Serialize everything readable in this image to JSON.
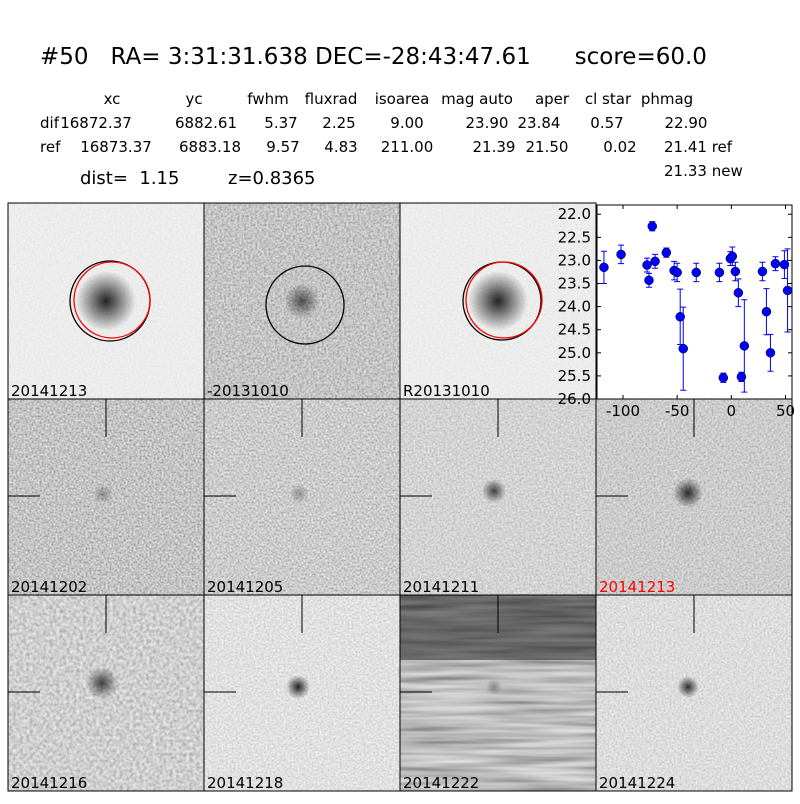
{
  "header": {
    "title": "#50   RA= 3:31:31.638 DEC=-28:43:47.61      score=60.0",
    "dist": "dist=  1.15",
    "z": "z=0.8365"
  },
  "table": {
    "columns": [
      "xc",
      "yc",
      "fwhm",
      "fluxrad",
      "isoarea",
      "mag auto",
      "aper",
      "cl star",
      "phmag"
    ],
    "rows": [
      [
        "dif",
        "16872.37",
        "6882.61",
        "5.37",
        "2.25",
        "9.00",
        "23.90",
        "23.84",
        "0.57",
        "22.90"
      ],
      [
        "ref",
        "16873.37",
        "6883.18",
        "9.57",
        "4.83",
        "211.00",
        "21.39",
        "21.50",
        "0.02",
        "21.41 ref"
      ]
    ],
    "extra": "21.33 new"
  },
  "panels": [
    {
      "label": "20141213"
    },
    {
      "label": "-20131010"
    },
    {
      "label": "R20131010"
    },
    {
      "label": "20141202"
    },
    {
      "label": "20141205"
    },
    {
      "label": "20141211"
    },
    {
      "label": "20141213",
      "color": "#ff0000"
    },
    {
      "label": "20141216"
    },
    {
      "label": "20141218"
    },
    {
      "label": "20141222"
    },
    {
      "label": "20141224"
    }
  ],
  "chart_data": {
    "type": "scatter",
    "color": "#0000ff",
    "invert_y": true,
    "x": [
      -117.6,
      -101.8,
      -77.8,
      -76,
      -73,
      -70.4,
      -60,
      -52.8,
      -50,
      -47.2,
      -44.4,
      -32.4,
      -11,
      -7.4,
      -0.9,
      0.9,
      3.7,
      6.5,
      9.3,
      12,
      28.7,
      32.4,
      36.1,
      40.7,
      49,
      51.9
    ],
    "values": [
      23.15,
      22.87,
      23.1,
      23.43,
      22.26,
      23.02,
      22.83,
      23.22,
      23.26,
      24.22,
      24.91,
      23.26,
      23.26,
      25.54,
      22.96,
      22.91,
      23.24,
      23.7,
      25.52,
      24.85,
      23.24,
      24.11,
      25.0,
      23.07,
      23.09,
      23.65
    ],
    "errors": [
      0.35,
      0.2,
      0.15,
      0.15,
      0.1,
      0.15,
      0.1,
      0.2,
      0.2,
      0.6,
      0.9,
      0.2,
      0.2,
      0.1,
      0.15,
      0.2,
      0.2,
      0.3,
      0.1,
      1.0,
      0.2,
      0.5,
      0.4,
      0.15,
      0.3,
      0.9
    ],
    "xlim": [
      -124,
      56
    ],
    "ylim": [
      21.8,
      26.0
    ],
    "xticks": [
      -100,
      -50,
      0,
      50
    ],
    "yticks": [
      {
        "value": 22,
        "label": "22.0"
      },
      {
        "value": 22.5,
        "label": "22.5"
      },
      {
        "value": 23,
        "label": "23.0"
      },
      {
        "value": 23.5,
        "label": "23.5"
      },
      {
        "value": 24,
        "label": "24.0"
      },
      {
        "value": 24.5,
        "label": "24.5"
      },
      {
        "value": 25,
        "label": "25.0"
      },
      {
        "value": 25.5,
        "label": "25.5"
      },
      {
        "value": 26,
        "label": "26.0"
      }
    ]
  }
}
